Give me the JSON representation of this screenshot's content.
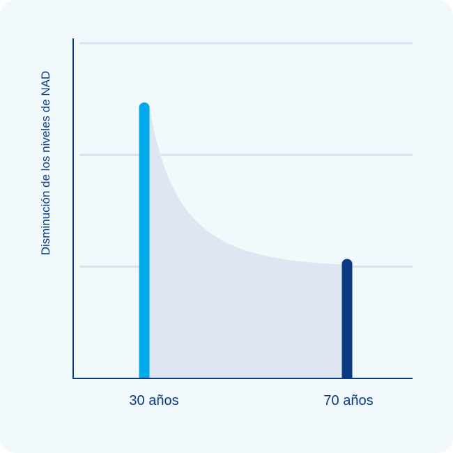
{
  "chart_data": {
    "type": "bar",
    "title": "",
    "xlabel": "",
    "ylabel": "Disminución de los niveles de NAD",
    "categories": [
      "30 años",
      "70 años"
    ],
    "values": [
      2.47,
      1.07
    ],
    "ylim": [
      0,
      3
    ],
    "grid": true,
    "y_tick_labels_shown": false,
    "shaded_decay_curve_between_bars": true,
    "colors": {
      "bar_30": "#00aaea",
      "bar_70": "#0b3a80",
      "area": "#dfe5f1",
      "grid": "#d6e4f0",
      "axis": "#0b3a80",
      "background": "#f1f9fd"
    }
  }
}
